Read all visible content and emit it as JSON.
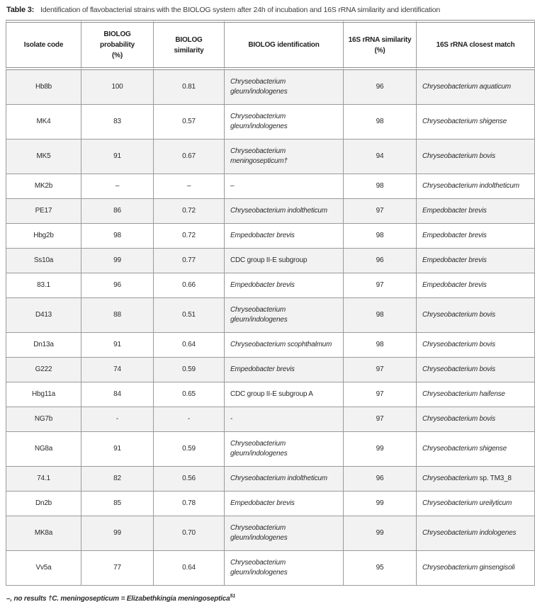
{
  "title": {
    "label": "Table 3:",
    "text": "Identification of flavobacterial strains with the BIOLOG system after 24h of incubation and 16S rRNA similarity and identification"
  },
  "table": {
    "columns": [
      "Isolate code",
      "BIOLOG\nprobability\n(%)",
      "BIOLOG\nsimilarity",
      "BIOLOG identification",
      "16S rRNA similarity\n(%)",
      "16S rRNA closest match"
    ],
    "rows": [
      {
        "code": "Hb8b",
        "prob": "100",
        "sim": "0.81",
        "ident": "Chryseobacterium\ngleum/indologenes",
        "ident_italic": true,
        "rrna": "96",
        "match_italic": "Chryseobacterium aquaticum",
        "match_plain": ""
      },
      {
        "code": "MK4",
        "prob": "83",
        "sim": "0.57",
        "ident": "Chryseobacterium\ngleum/indologenes",
        "ident_italic": true,
        "rrna": "98",
        "match_italic": "Chryseobacterium shigense",
        "match_plain": ""
      },
      {
        "code": "MK5",
        "prob": "91",
        "sim": "0.67",
        "ident": "Chryseobacterium\nmeningosepticum†",
        "ident_italic": true,
        "rrna": "94",
        "match_italic": "Chryseobacterium bovis",
        "match_plain": ""
      },
      {
        "code": "MK2b",
        "prob": "–",
        "sim": "–",
        "ident": "–",
        "ident_italic": false,
        "rrna": "98",
        "match_italic": "Chryseobacterium indoltheticum",
        "match_plain": ""
      },
      {
        "code": "PE17",
        "prob": "86",
        "sim": "0.72",
        "ident": "Chryseobacterium indoltheticum",
        "ident_italic": true,
        "rrna": "97",
        "match_italic": "Empedobacter brevis",
        "match_plain": ""
      },
      {
        "code": "Hbg2b",
        "prob": "98",
        "sim": "0.72",
        "ident": "Empedobacter brevis",
        "ident_italic": true,
        "rrna": "98",
        "match_italic": "Empedobacter brevis",
        "match_plain": ""
      },
      {
        "code": "Ss10a",
        "prob": "99",
        "sim": "0.77",
        "ident": "CDC group II-E subgroup",
        "ident_italic": false,
        "rrna": "96",
        "match_italic": "Empedobacter brevis",
        "match_plain": ""
      },
      {
        "code": "83.1",
        "prob": "96",
        "sim": "0.66",
        "ident": "Empedobacter brevis",
        "ident_italic": true,
        "rrna": "97",
        "match_italic": "Empedobacter brevis",
        "match_plain": ""
      },
      {
        "code": "D413",
        "prob": "88",
        "sim": "0.51",
        "ident": "Chryseobacterium\ngleum/indologenes",
        "ident_italic": true,
        "rrna": "98",
        "match_italic": "Chryseobacterium bovis",
        "match_plain": ""
      },
      {
        "code": "Dn13a",
        "prob": "91",
        "sim": "0.64",
        "ident": "Chryseobacterium scophthalmum",
        "ident_italic": true,
        "rrna": "98",
        "match_italic": "Chryseobacterium bovis",
        "match_plain": ""
      },
      {
        "code": "G222",
        "prob": "74",
        "sim": "0.59",
        "ident": "Empedobacter brevis",
        "ident_italic": true,
        "rrna": "97",
        "match_italic": "Chryseobacterium bovis",
        "match_plain": ""
      },
      {
        "code": "Hbg11a",
        "prob": "84",
        "sim": "0.65",
        "ident": "CDC group II-E subgroup A",
        "ident_italic": false,
        "rrna": "97",
        "match_italic": "Chryseobacterium haifense",
        "match_plain": ""
      },
      {
        "code": "NG7b",
        "prob": "-",
        "sim": "-",
        "ident": "-",
        "ident_italic": false,
        "rrna": "97",
        "match_italic": "Chryseobacterium bovis",
        "match_plain": ""
      },
      {
        "code": "NG8a",
        "prob": "91",
        "sim": "0.59",
        "ident": "Chryseobacterium\ngleum/indologenes",
        "ident_italic": true,
        "rrna": "99",
        "match_italic": "Chryseobacterium shigense",
        "match_plain": ""
      },
      {
        "code": "74.1",
        "prob": "82",
        "sim": "0.56",
        "ident": "Chryseobacterium indoltheticum",
        "ident_italic": true,
        "rrna": "96",
        "match_italic": "Chryseobacterium",
        "match_plain": " sp. TM3_8"
      },
      {
        "code": "Dn2b",
        "prob": "85",
        "sim": "0.78",
        "ident": "Empedobacter brevis",
        "ident_italic": true,
        "rrna": "99",
        "match_italic": "Chryseobacterium ureilyticum",
        "match_plain": ""
      },
      {
        "code": "MK8a",
        "prob": "99",
        "sim": "0.70",
        "ident": "Chryseobacterium\ngleum/indologenes",
        "ident_italic": true,
        "rrna": "99",
        "match_italic": "Chryseobacterium indologenes",
        "match_plain": ""
      },
      {
        "code": "Vv5a",
        "prob": "77",
        "sim": "0.64",
        "ident": "Chryseobacterium\ngleum/indologenes",
        "ident_italic": true,
        "rrna": "95",
        "match_italic": "Chryseobacterium ginsengisoli",
        "match_plain": ""
      }
    ]
  },
  "footnote": {
    "text": "–, no results †C. meningosepticum = Elizabethkingia meningoseptica",
    "sup": "51"
  },
  "colors": {
    "row_alt": "#f2f2f2",
    "border": "#9a9a9a",
    "rule": "#8c8c8c",
    "text": "#2e2e2e"
  }
}
